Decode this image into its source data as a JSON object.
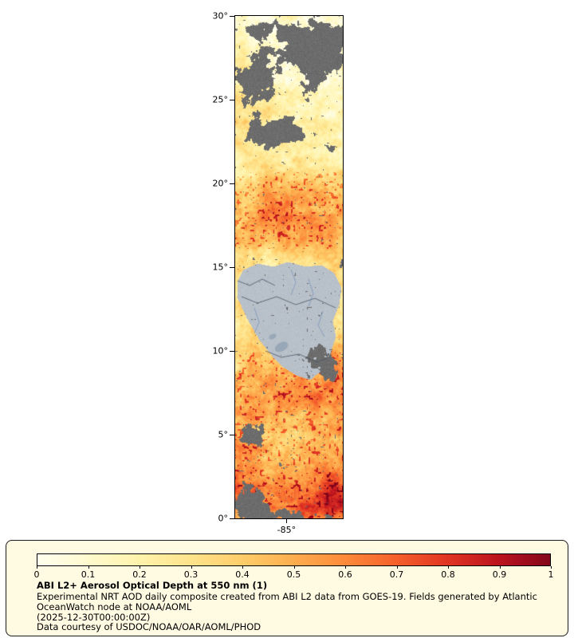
{
  "figure": {
    "kind": "satellite-aod-map"
  },
  "chart_data": {
    "type": "heatmap",
    "title": "ABI L2+ Aerosol Optical Depth at 550 nm (1)",
    "colorbar_ticks": [
      0,
      0.1,
      0.2,
      0.3,
      0.4,
      0.5,
      0.6,
      0.7,
      0.8,
      0.9,
      1
    ],
    "value_range": [
      0,
      1
    ],
    "x_axis_ticks": [
      "-85°"
    ],
    "y_axis_ticks": [
      "30°",
      "25°",
      "20°",
      "15°",
      "10°",
      "5°",
      "0°"
    ],
    "legend_position": "bottom"
  },
  "map": {
    "lat_range": [
      0,
      30
    ],
    "lon_range": [
      -88.1,
      -81.6
    ],
    "y_axis": {
      "ticks": [
        {
          "label": "30°",
          "lat": 30
        },
        {
          "label": "25°",
          "lat": 25
        },
        {
          "label": "20°",
          "lat": 20
        },
        {
          "label": "15°",
          "lat": 15
        },
        {
          "label": "10°",
          "lat": 10
        },
        {
          "label": "5°",
          "lat": 5
        },
        {
          "label": "0°",
          "lat": 0
        }
      ]
    },
    "x_axis": {
      "ticks": [
        {
          "label": "-85°",
          "lon": -85
        }
      ]
    },
    "render": {
      "noise_amp": 0.62,
      "cloud_threshold": 0.72,
      "aod_profile": [
        [
          0,
          0.16
        ],
        [
          40,
          0.18
        ],
        [
          90,
          0.21
        ],
        [
          130,
          0.25
        ],
        [
          155,
          0.27
        ],
        [
          185,
          0.34
        ],
        [
          215,
          0.45
        ],
        [
          250,
          0.48
        ],
        [
          285,
          0.41
        ],
        [
          310,
          0.3
        ],
        [
          350,
          0.28
        ],
        [
          400,
          0.33
        ],
        [
          430,
          0.4
        ],
        [
          455,
          0.52
        ],
        [
          480,
          0.56
        ],
        [
          505,
          0.48
        ],
        [
          530,
          0.43
        ],
        [
          555,
          0.51
        ],
        [
          575,
          0.56
        ],
        [
          595,
          0.66
        ],
        [
          615,
          0.72
        ],
        [
          630,
          0.55
        ]
      ],
      "cloud_blobs": [
        [
          105,
          45,
          50,
          45,
          0.55
        ],
        [
          30,
          18,
          40,
          16,
          0.3
        ],
        [
          22,
          80,
          26,
          30,
          0.45
        ],
        [
          50,
          145,
          55,
          22,
          0.42
        ],
        [
          120,
          165,
          22,
          16,
          0.35
        ],
        [
          131,
          310,
          10,
          40,
          0.22
        ],
        [
          112,
          432,
          32,
          28,
          0.5
        ],
        [
          15,
          525,
          25,
          22,
          0.4
        ],
        [
          62,
          562,
          22,
          14,
          0.32
        ],
        [
          12,
          608,
          26,
          26,
          0.5
        ],
        [
          70,
          626,
          60,
          14,
          0.45
        ]
      ],
      "land_polygon": [
        [
          3,
          332
        ],
        [
          10,
          318
        ],
        [
          28,
          310
        ],
        [
          48,
          314
        ],
        [
          66,
          308
        ],
        [
          88,
          314
        ],
        [
          108,
          312
        ],
        [
          124,
          322
        ],
        [
          133,
          340
        ],
        [
          130,
          362
        ],
        [
          122,
          382
        ],
        [
          126,
          402
        ],
        [
          118,
          425
        ],
        [
          108,
          444
        ],
        [
          94,
          456
        ],
        [
          76,
          450
        ],
        [
          60,
          440
        ],
        [
          46,
          426
        ],
        [
          30,
          406
        ],
        [
          14,
          378
        ],
        [
          2,
          352
        ]
      ],
      "lakes": [
        [
          58,
          415,
          9,
          5.5
        ],
        [
          47,
          402,
          5,
          3
        ]
      ],
      "borders": [
        [
          [
            3,
            332
          ],
          [
            18,
            338
          ],
          [
            34,
            330
          ],
          [
            50,
            338
          ]
        ],
        [
          [
            8,
            352
          ],
          [
            28,
            360
          ],
          [
            52,
            352
          ],
          [
            76,
            362
          ],
          [
            100,
            354
          ],
          [
            126,
            366
          ]
        ],
        [
          [
            38,
            420
          ],
          [
            58,
            428
          ],
          [
            80,
            424
          ],
          [
            102,
            434
          ],
          [
            118,
            428
          ]
        ]
      ],
      "rivers": [
        [
          [
            70,
            318
          ],
          [
            76,
            334
          ],
          [
            70,
            350
          ]
        ],
        [
          [
            92,
            330
          ],
          [
            98,
            348
          ],
          [
            92,
            364
          ]
        ],
        [
          [
            110,
            370
          ],
          [
            104,
            388
          ],
          [
            112,
            402
          ]
        ],
        [
          [
            24,
            366
          ],
          [
            30,
            384
          ],
          [
            24,
            398
          ]
        ]
      ],
      "colors": {
        "cloud": "#6c6c6c",
        "land": "#b8c0ca",
        "lake": "#98a8b8",
        "border": "#4a5564",
        "river": "#7090b4"
      }
    }
  },
  "colorbar": {
    "ticks": [
      "0",
      "0.1",
      "0.2",
      "0.3",
      "0.4",
      "0.5",
      "0.6",
      "0.7",
      "0.8",
      "0.9",
      "1"
    ],
    "stops": [
      "#ffffee",
      "#ffface",
      "#fff3ab",
      "#fee38b",
      "#fecd6a",
      "#fdad4e",
      "#fc8a3a",
      "#f5602b",
      "#e03423",
      "#bb131f",
      "#84061a"
    ]
  },
  "legend": {
    "background": "#fffbe3",
    "title": "ABI L2+ Aerosol Optical Depth at 550 nm (1)",
    "caption_lines": [
      "Experimental NRT AOD daily composite created from ABI L2 data from GOES-19. Fields generated by Atlantic",
      "OceanWatch node at NOAA/AOML",
      "(2025-12-30T00:00:00Z)",
      "Data courtesy of USDOC/NOAA/OAR/AOML/PHOD"
    ]
  }
}
